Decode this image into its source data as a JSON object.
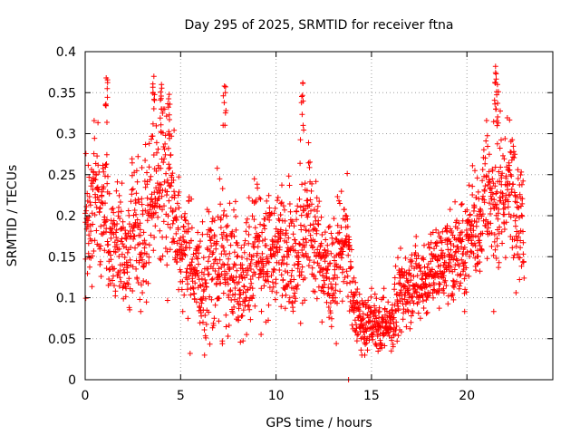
{
  "chart_data": {
    "type": "scatter",
    "title": "Day 295 of 2025, SRMTID for receiver ftna",
    "xlabel": "GPS time / hours",
    "ylabel": "SRMTID / TECUs",
    "xlim": [
      0,
      24.5
    ],
    "ylim": [
      0,
      0.4
    ],
    "xticks": [
      0,
      5,
      10,
      15,
      20
    ],
    "xtick_labels": [
      "0",
      "5",
      "10",
      "15",
      "20"
    ],
    "yticks": [
      0,
      0.05,
      0.1,
      0.15,
      0.2,
      0.25,
      0.3,
      0.35,
      0.4
    ],
    "ytick_labels": [
      "0",
      "0.05",
      "0.1",
      "0.15",
      "0.2",
      "0.25",
      "0.3",
      "0.35",
      "0.4"
    ],
    "grid": true,
    "marker": "+",
    "color": "#ff0000",
    "series": [
      {
        "name": "SRMTID",
        "envelope": {
          "description": "Approximate trend of the point cloud read from the figure",
          "x": [
            0,
            1,
            2,
            3,
            3.5,
            4,
            4.5,
            5,
            6,
            7,
            8,
            9,
            10,
            11,
            11.5,
            12,
            13,
            13.8,
            14,
            14.5,
            15,
            16,
            16.5,
            17,
            18,
            19,
            20,
            21,
            21.5,
            22,
            22.5,
            23
          ],
          "center": [
            0.22,
            0.2,
            0.16,
            0.18,
            0.24,
            0.27,
            0.22,
            0.14,
            0.12,
            0.17,
            0.13,
            0.16,
            0.15,
            0.16,
            0.2,
            0.15,
            0.14,
            0.15,
            0.08,
            0.07,
            0.07,
            0.07,
            0.1,
            0.14,
            0.12,
            0.14,
            0.18,
            0.22,
            0.25,
            0.24,
            0.22,
            0.16
          ],
          "spread": [
            0.05,
            0.05,
            0.04,
            0.05,
            0.06,
            0.06,
            0.05,
            0.04,
            0.04,
            0.06,
            0.04,
            0.05,
            0.04,
            0.05,
            0.06,
            0.04,
            0.04,
            0.04,
            0.025,
            0.02,
            0.02,
            0.02,
            0.03,
            0.03,
            0.03,
            0.03,
            0.04,
            0.05,
            0.06,
            0.05,
            0.05,
            0.04
          ]
        },
        "peaks": [
          {
            "x": 1.1,
            "y": 0.368
          },
          {
            "x": 3.6,
            "y": 0.37
          },
          {
            "x": 4.0,
            "y": 0.36
          },
          {
            "x": 4.4,
            "y": 0.348
          },
          {
            "x": 7.3,
            "y": 0.358
          },
          {
            "x": 11.4,
            "y": 0.362
          },
          {
            "x": 21.5,
            "y": 0.382
          },
          {
            "x": 21.6,
            "y": 0.36
          }
        ],
        "lows": [
          {
            "x": 5.5,
            "y": 0.032
          },
          {
            "x": 13.8,
            "y": 0.0
          }
        ],
        "x_end": 23
      }
    ]
  }
}
